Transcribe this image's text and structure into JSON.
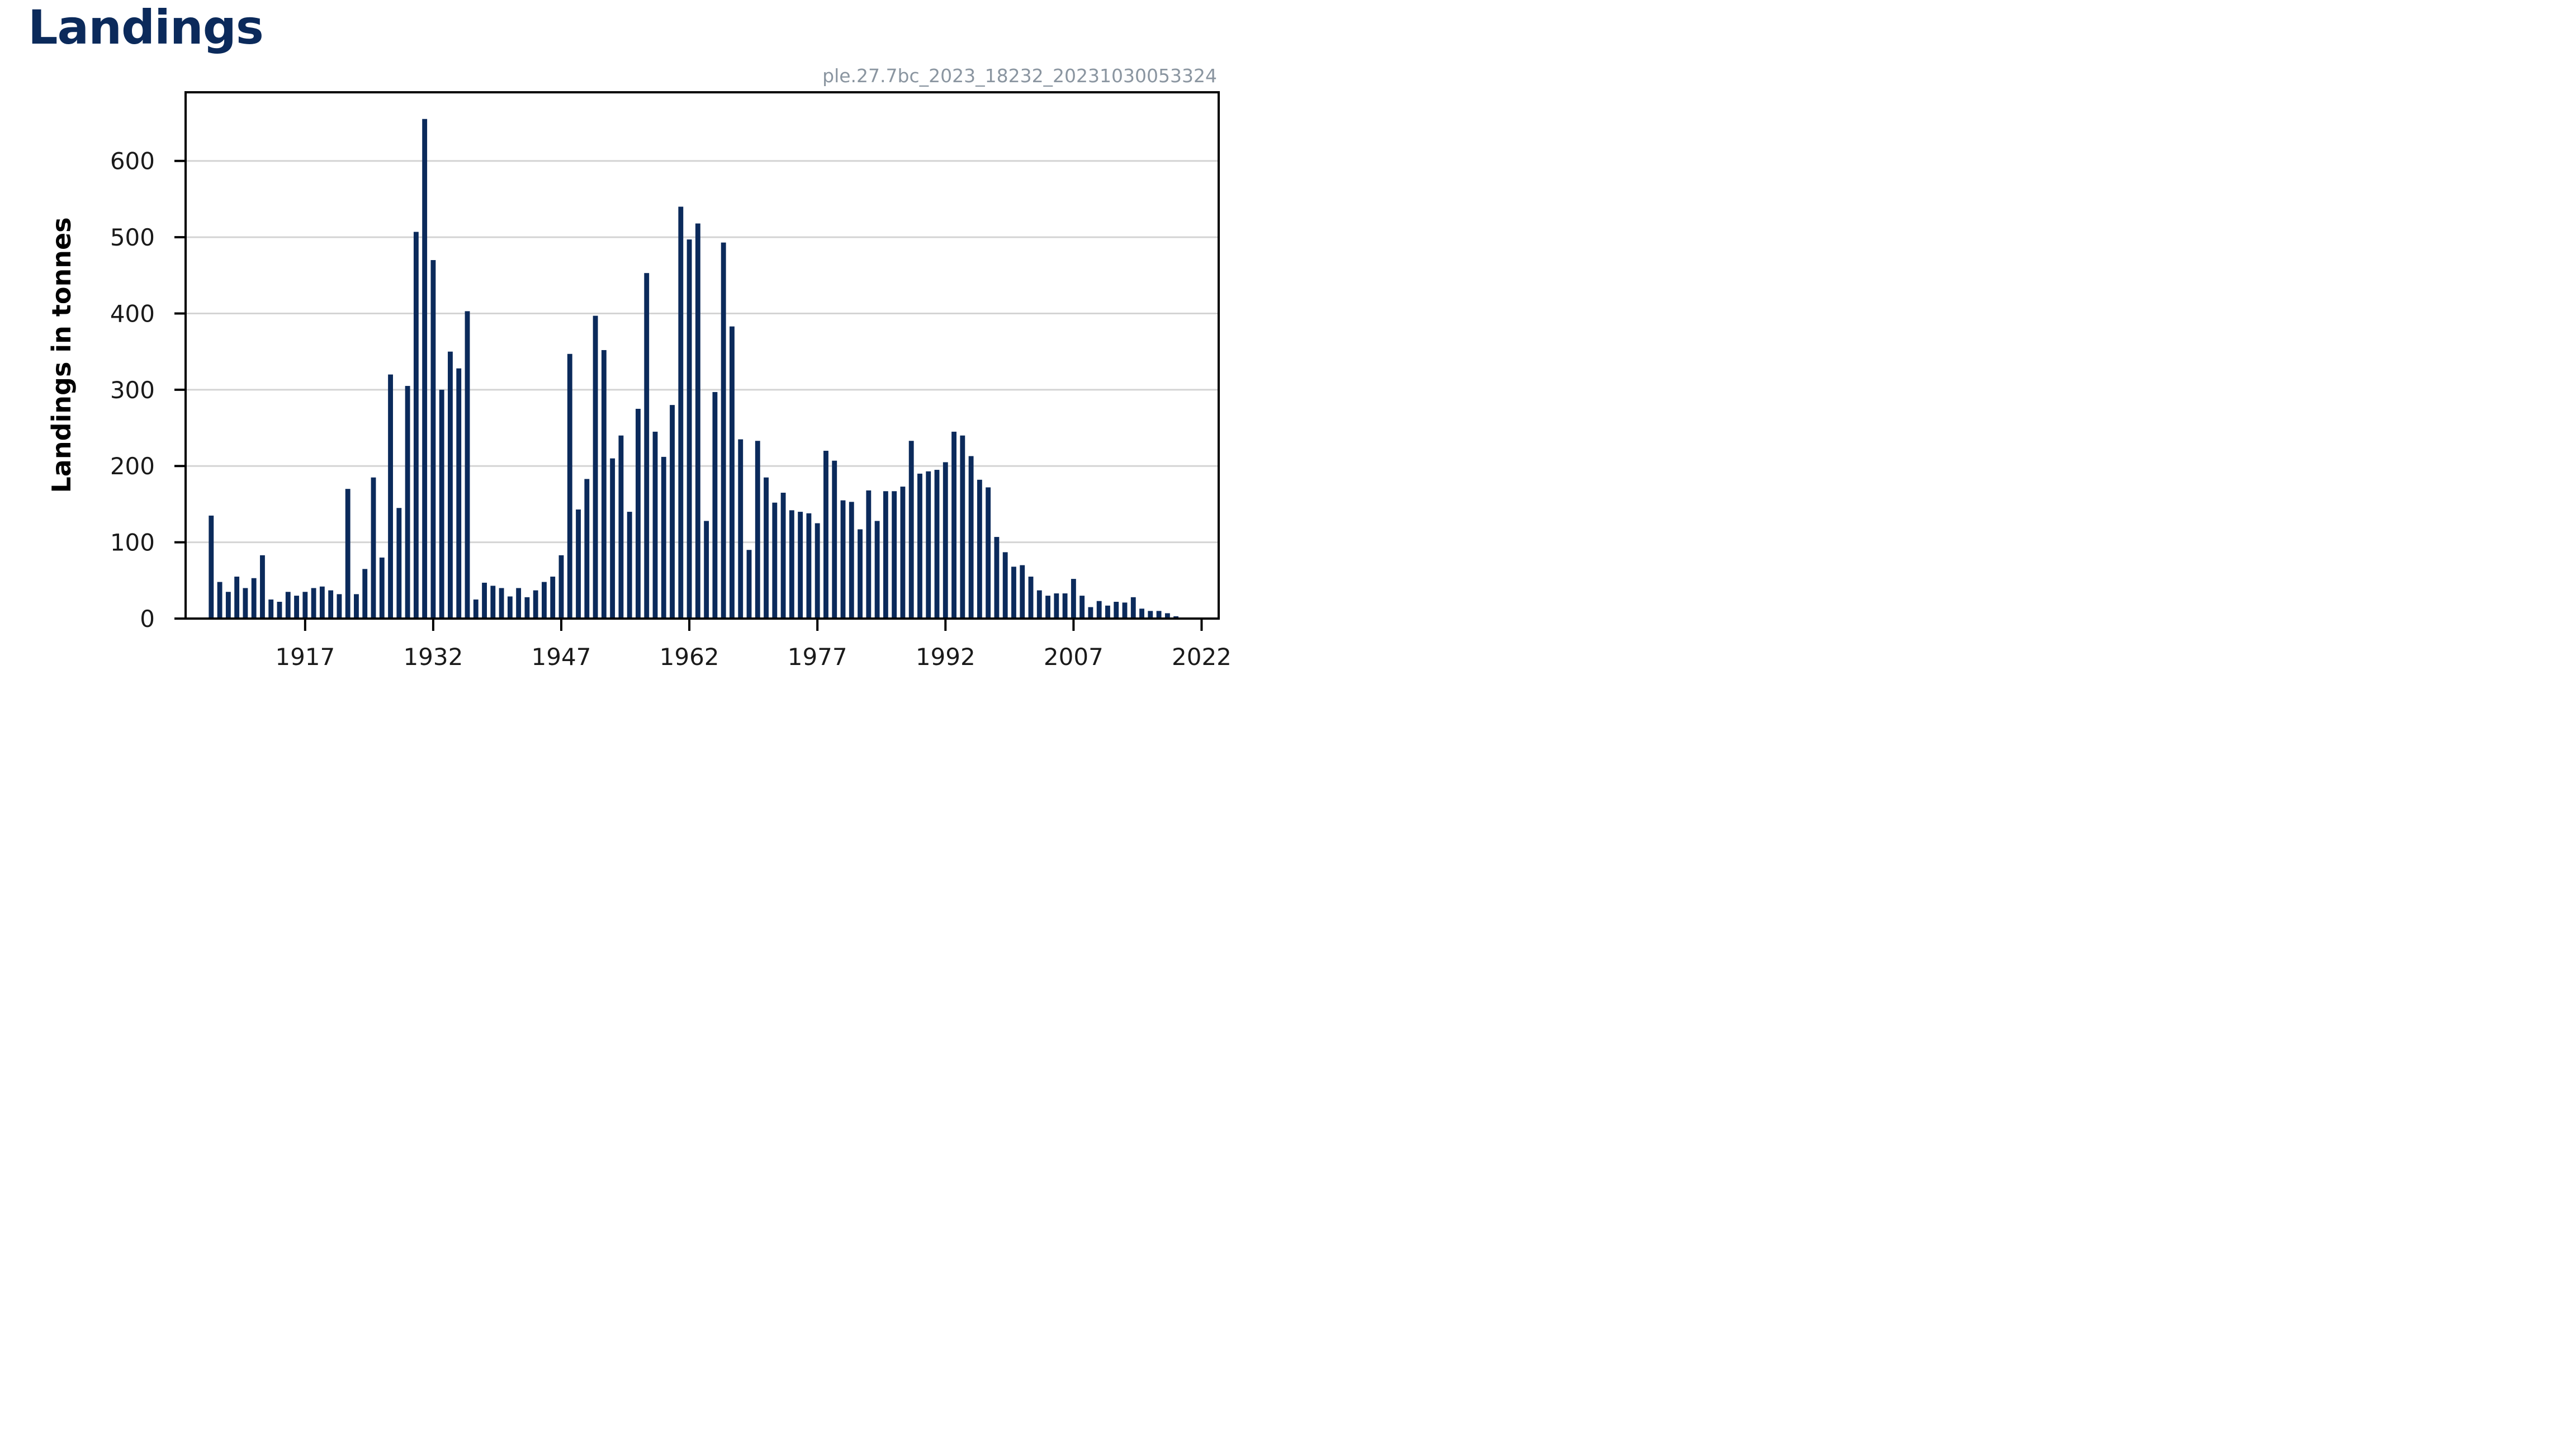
{
  "page": {
    "title": "Landings"
  },
  "chart_data": {
    "type": "bar",
    "title": "Landings",
    "caption": "ple.27.7bc_2023_18232_20231030053324",
    "xlabel": "",
    "ylabel": "Landings in tonnes",
    "bar_color": "#0b2a5b",
    "grid": true,
    "xlim": [
      1903,
      2024
    ],
    "ylim": [
      0,
      690
    ],
    "yticks": [
      0,
      100,
      200,
      300,
      400,
      500,
      600
    ],
    "xticks": [
      1917,
      1932,
      1947,
      1962,
      1977,
      1992,
      2007,
      2022
    ],
    "categories": [
      1906,
      1907,
      1908,
      1909,
      1910,
      1911,
      1912,
      1913,
      1914,
      1915,
      1916,
      1917,
      1918,
      1919,
      1920,
      1921,
      1922,
      1923,
      1924,
      1925,
      1926,
      1927,
      1928,
      1929,
      1930,
      1931,
      1932,
      1933,
      1934,
      1935,
      1936,
      1937,
      1938,
      1939,
      1940,
      1941,
      1942,
      1943,
      1944,
      1945,
      1946,
      1947,
      1948,
      1949,
      1950,
      1951,
      1952,
      1953,
      1954,
      1955,
      1956,
      1957,
      1958,
      1959,
      1960,
      1961,
      1962,
      1963,
      1964,
      1965,
      1966,
      1967,
      1968,
      1969,
      1970,
      1971,
      1972,
      1973,
      1974,
      1975,
      1976,
      1977,
      1978,
      1979,
      1980,
      1981,
      1982,
      1983,
      1984,
      1985,
      1986,
      1987,
      1988,
      1989,
      1990,
      1991,
      1992,
      1993,
      1994,
      1995,
      1996,
      1997,
      1998,
      1999,
      2000,
      2001,
      2002,
      2003,
      2004,
      2005,
      2006,
      2007,
      2008,
      2009,
      2010,
      2011,
      2012,
      2013,
      2014,
      2015,
      2016,
      2017,
      2018,
      2019,
      2020,
      2021,
      2022
    ],
    "values": [
      135,
      48,
      35,
      55,
      40,
      53,
      83,
      25,
      22,
      35,
      30,
      35,
      40,
      42,
      37,
      32,
      170,
      32,
      65,
      185,
      80,
      320,
      145,
      305,
      507,
      655,
      470,
      300,
      350,
      328,
      403,
      25,
      47,
      43,
      40,
      29,
      40,
      28,
      37,
      48,
      55,
      83,
      347,
      143,
      183,
      397,
      352,
      210,
      240,
      140,
      275,
      453,
      245,
      212,
      280,
      540,
      497,
      518,
      128,
      297,
      493,
      383,
      235,
      90,
      233,
      185,
      152,
      165,
      142,
      140,
      138,
      125,
      220,
      207,
      155,
      153,
      117,
      168,
      128,
      167,
      167,
      173,
      233,
      190,
      193,
      195,
      205,
      245,
      240,
      213,
      182,
      172,
      107,
      87,
      68,
      70,
      55,
      37,
      30,
      33,
      33,
      52,
      30,
      15,
      23,
      17,
      22,
      21,
      28,
      13,
      10,
      10,
      7,
      3,
      1,
      0,
      0
    ]
  }
}
